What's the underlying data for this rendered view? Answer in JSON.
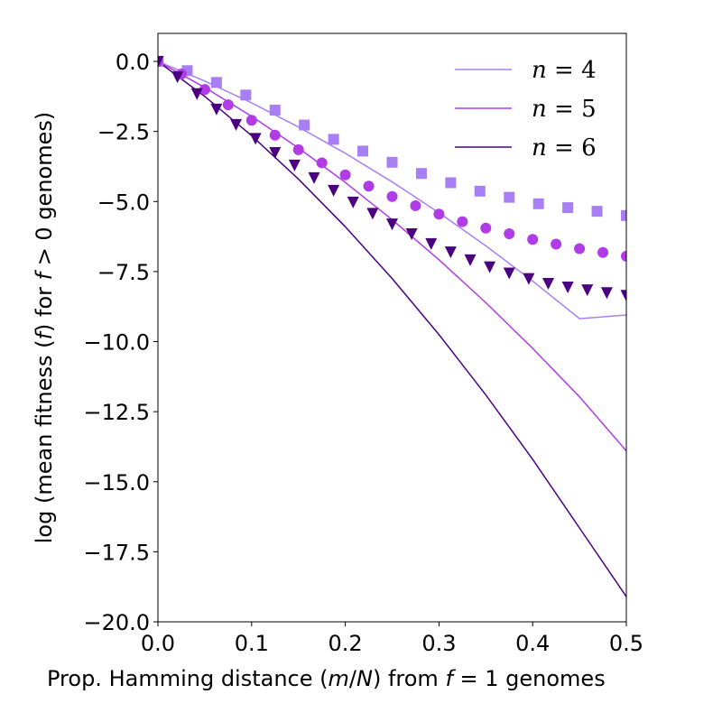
{
  "chart_data": {
    "type": "scatter",
    "xlabel": "Prop. Hamming distance (m/N) from f = 1 genomes",
    "ylabel": "log (mean fitness (f) for f > 0 genomes)",
    "xlim": [
      0.0,
      0.5
    ],
    "ylim": [
      -20.0,
      1.0
    ],
    "xticks": [
      0.0,
      0.1,
      0.2,
      0.3,
      0.4,
      0.5
    ],
    "xtick_labels": [
      "0.0",
      "0.1",
      "0.2",
      "0.3",
      "0.4",
      "0.5"
    ],
    "yticks": [
      0.0,
      -2.5,
      -5.0,
      -7.5,
      -10.0,
      -12.5,
      -15.0,
      -17.5,
      -20.0
    ],
    "ytick_labels": [
      "0.0",
      "−2.5",
      "−5.0",
      "−7.5",
      "−10.0",
      "−12.5",
      "−15.0",
      "−17.5",
      "−20.0"
    ],
    "grid": false,
    "legend_position": "top-right",
    "series": [
      {
        "name": "n = 4",
        "color": "#a87ef5",
        "marker": "square",
        "x": [
          0.0,
          0.03125,
          0.0625,
          0.09375,
          0.125,
          0.15625,
          0.1875,
          0.21875,
          0.25,
          0.28125,
          0.3125,
          0.34375,
          0.375,
          0.40625,
          0.4375,
          0.46875,
          0.5
        ],
        "y": [
          0.0,
          -0.33,
          -0.75,
          -1.2,
          -1.74,
          -2.27,
          -2.78,
          -3.2,
          -3.6,
          -4.0,
          -4.33,
          -4.63,
          -4.85,
          -5.08,
          -5.22,
          -5.35,
          -5.5
        ],
        "fit_x": [
          0.0,
          0.05,
          0.1,
          0.15,
          0.2,
          0.25,
          0.3,
          0.35,
          0.4,
          0.45,
          0.5
        ],
        "fit_y": [
          0.0,
          -0.7,
          -1.48,
          -2.34,
          -3.28,
          -4.3,
          -5.4,
          -6.58,
          -7.84,
          -9.18,
          -9.05
        ]
      },
      {
        "name": "n = 5",
        "color": "#b13be6",
        "marker": "circle",
        "x": [
          0.0,
          0.025,
          0.05,
          0.075,
          0.1,
          0.125,
          0.15,
          0.175,
          0.2,
          0.225,
          0.25,
          0.275,
          0.3,
          0.325,
          0.35,
          0.375,
          0.4,
          0.425,
          0.45,
          0.475,
          0.5
        ],
        "y": [
          0.0,
          -0.45,
          -1.0,
          -1.55,
          -2.1,
          -2.63,
          -3.15,
          -3.62,
          -4.05,
          -4.45,
          -4.82,
          -5.15,
          -5.45,
          -5.72,
          -5.95,
          -6.15,
          -6.35,
          -6.52,
          -6.68,
          -6.82,
          -6.95
        ],
        "fit_x": [
          0.0,
          0.05,
          0.1,
          0.15,
          0.2,
          0.25,
          0.3,
          0.35,
          0.4,
          0.45,
          0.5
        ],
        "fit_y": [
          0.0,
          -0.93,
          -1.96,
          -3.09,
          -4.32,
          -5.65,
          -7.08,
          -8.61,
          -10.24,
          -11.97,
          -13.9
        ]
      },
      {
        "name": "n = 6",
        "color": "#4b0082",
        "marker": "triangle-down",
        "x": [
          0.0,
          0.02083,
          0.04167,
          0.0625,
          0.08333,
          0.10417,
          0.125,
          0.14583,
          0.16667,
          0.1875,
          0.20833,
          0.22917,
          0.25,
          0.27083,
          0.29167,
          0.3125,
          0.33333,
          0.35417,
          0.375,
          0.39583,
          0.41667,
          0.4375,
          0.45833,
          0.47917,
          0.5
        ],
        "y": [
          0.0,
          -0.55,
          -1.15,
          -1.7,
          -2.25,
          -2.75,
          -3.25,
          -3.7,
          -4.15,
          -4.6,
          -5.02,
          -5.42,
          -5.8,
          -6.15,
          -6.5,
          -6.8,
          -7.08,
          -7.33,
          -7.55,
          -7.75,
          -7.92,
          -8.05,
          -8.15,
          -8.25,
          -8.35
        ],
        "fit_x": [
          0.0,
          0.05,
          0.1,
          0.15,
          0.2,
          0.25,
          0.3,
          0.35,
          0.4,
          0.45,
          0.5
        ],
        "fit_y": [
          0.0,
          -1.25,
          -2.65,
          -4.2,
          -5.9,
          -7.75,
          -9.75,
          -11.9,
          -14.2,
          -16.65,
          -19.1
        ]
      }
    ]
  }
}
